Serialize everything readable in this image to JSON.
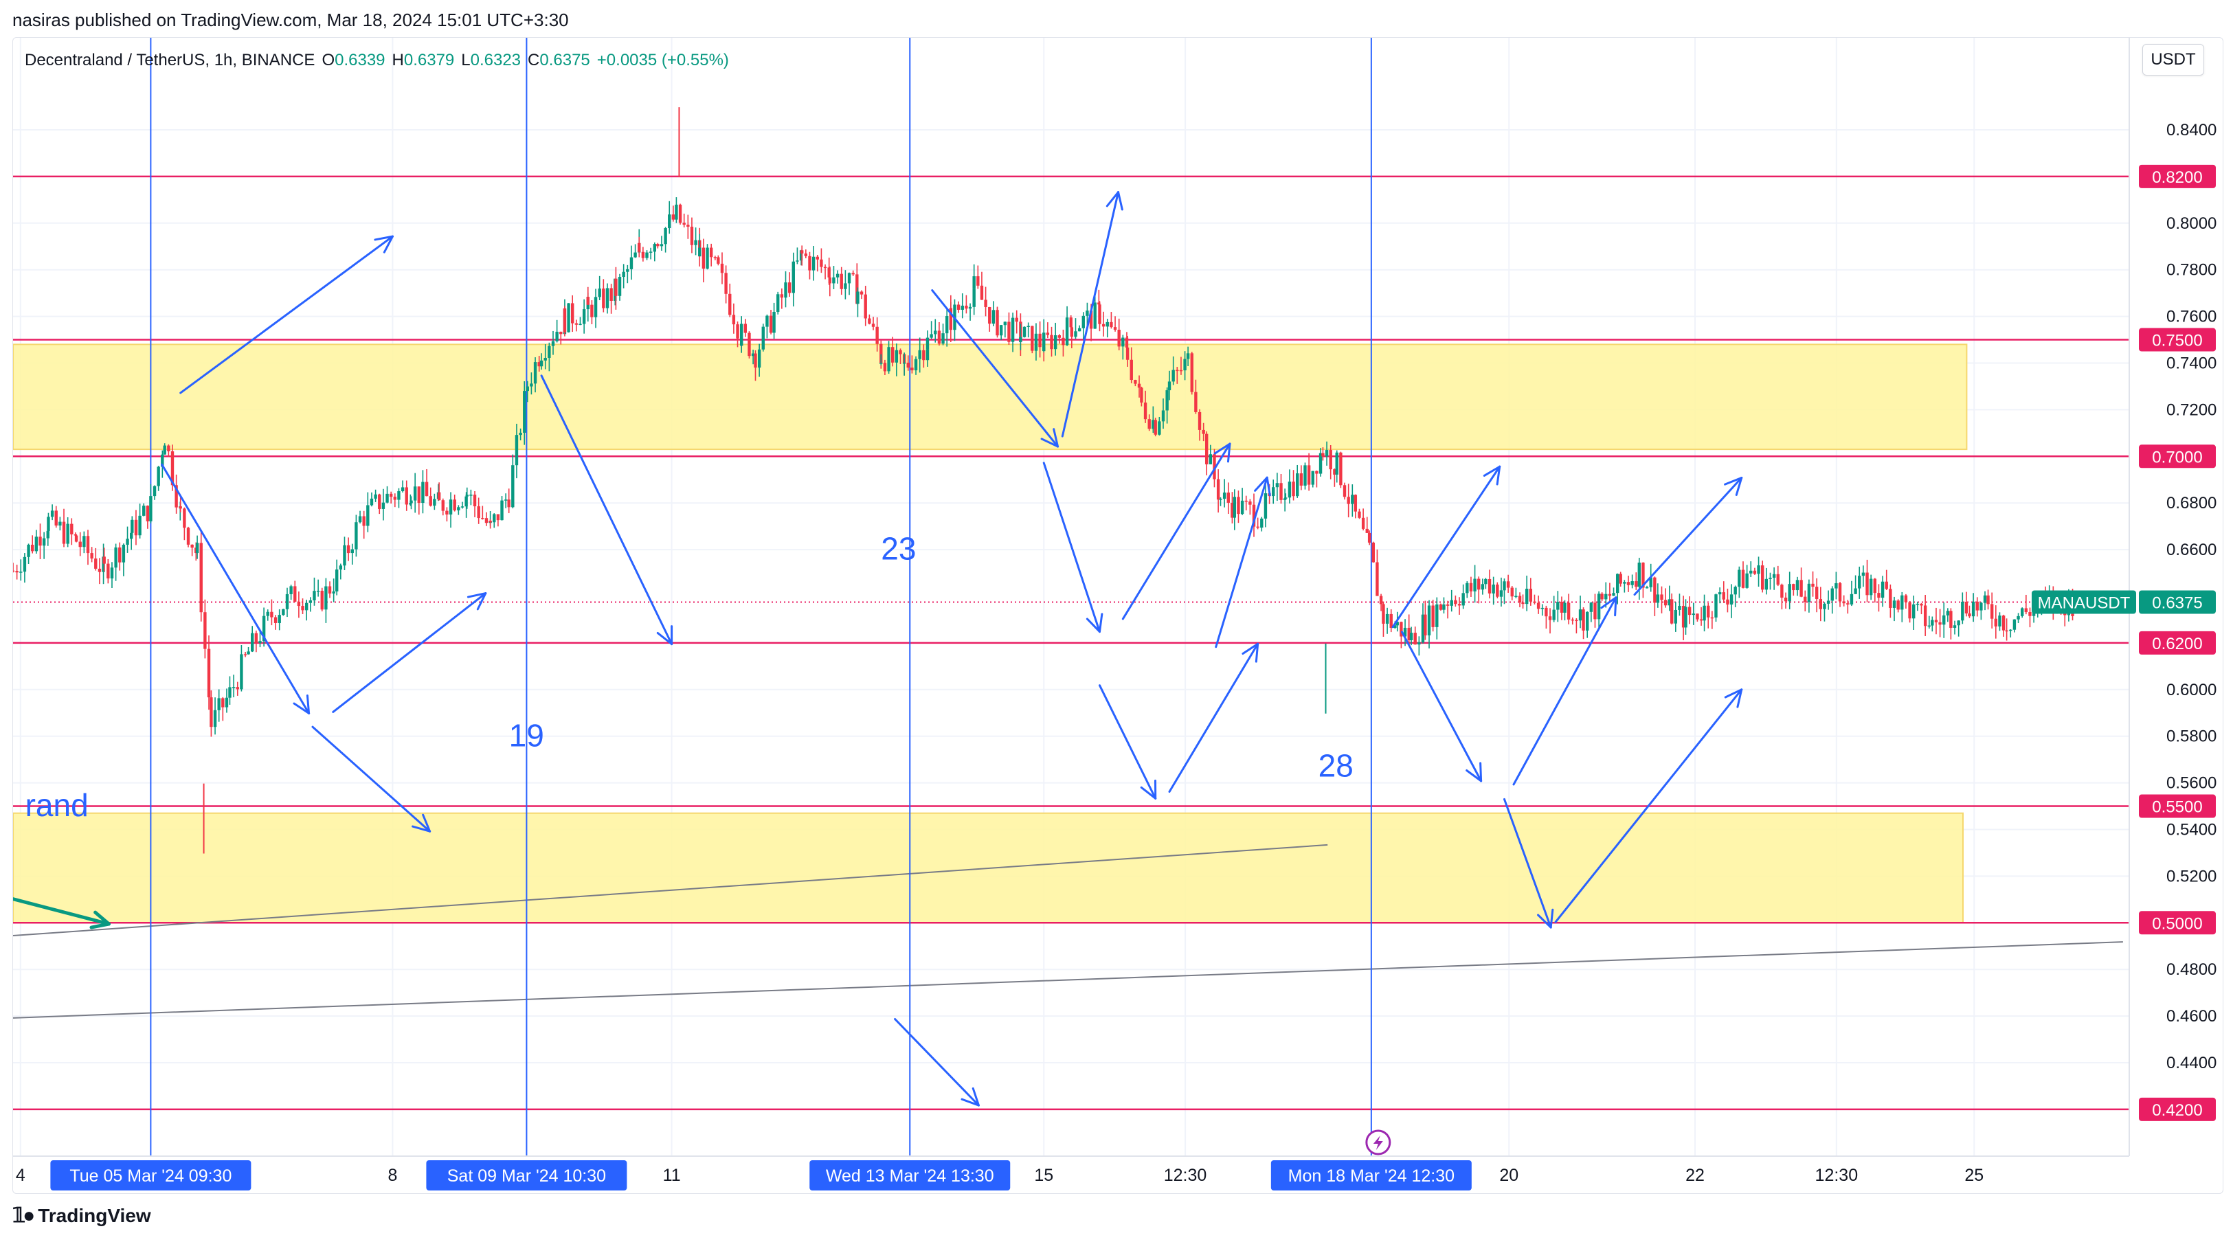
{
  "publish_line": "nasiras published on TradingView.com, Mar 18, 2024 15:01 UTC+3:30",
  "legend": {
    "symbol": "Decentraland / TetherUS, 1h, BINANCE",
    "open_label": "O",
    "open": "0.6339",
    "high_label": "H",
    "high": "0.6379",
    "low_label": "L",
    "low": "0.6323",
    "close_label": "C",
    "close": "0.6375",
    "change": "+0.0035 (+0.55%)"
  },
  "currency_button": "USDT",
  "footer": {
    "brand": "TradingView",
    "logo_icon": "tradingview-logo-icon"
  },
  "colors": {
    "bull": "#089981",
    "bear": "#f23645",
    "level_line": "#e91e63",
    "zone_fill": "#fff59d",
    "arrow": "#2962ff",
    "current_price": "#089981",
    "time_marker": "#2962ff",
    "trendline": "#787b86",
    "green_arrow": "#089981"
  },
  "chart_data": {
    "type": "candlestick",
    "symbol": "MANAUSDT",
    "interval": "1h",
    "ylim": [
      0.42,
      0.86
    ],
    "y_ticks": [
      "0.4400",
      "0.4600",
      "0.4800",
      "0.5200",
      "0.5400",
      "0.5600",
      "0.5800",
      "0.6000",
      "0.6600",
      "0.6800",
      "0.7200",
      "0.7400",
      "0.7600",
      "0.7800",
      "0.8000",
      "0.8400"
    ],
    "x_ticks": [
      {
        "label": "4",
        "day": 4.0
      },
      {
        "label": "8",
        "day": 8.0
      },
      {
        "label": "11",
        "day": 11.0
      },
      {
        "label": "15",
        "day": 15.0
      },
      {
        "label": "12:30",
        "day": 16.52
      },
      {
        "label": "20",
        "day": 20.0
      },
      {
        "label": "22",
        "day": 22.0
      },
      {
        "label": "12:30",
        "day": 23.52
      },
      {
        "label": "25",
        "day": 25.0
      }
    ],
    "x_range_days": [
      3.92,
      26.67
    ],
    "horizontal_levels": [
      {
        "price": 0.82,
        "label": "0.8200"
      },
      {
        "price": 0.75,
        "label": "0.7500"
      },
      {
        "price": 0.7,
        "label": "0.7000"
      },
      {
        "price": 0.62,
        "label": "0.6200"
      },
      {
        "price": 0.55,
        "label": "0.5500"
      },
      {
        "price": 0.5,
        "label": "0.5000"
      },
      {
        "price": 0.42,
        "label": "0.4200"
      }
    ],
    "zones": [
      {
        "from_day": 3.92,
        "to_day": 24.92,
        "low": 0.703,
        "high": 0.748
      },
      {
        "from_day": 3.92,
        "to_day": 24.88,
        "low": 0.5,
        "high": 0.547
      }
    ],
    "time_markers": [
      {
        "day": 5.4,
        "label": "Tue 05 Mar '24   09:30"
      },
      {
        "day": 9.44,
        "label": "Sat 09 Mar '24   10:30"
      },
      {
        "day": 13.56,
        "label": "Wed 13 Mar '24   13:30"
      },
      {
        "day": 18.52,
        "label": "Mon 18 Mar '24   12:30"
      }
    ],
    "current_price": {
      "symbol": "MANAUSDT",
      "value": "0.6375",
      "price": 0.6375
    },
    "annotations": [
      {
        "text": "19",
        "day": 9.25,
        "price": 0.5757
      },
      {
        "text": "23",
        "day": 13.25,
        "price": 0.6557
      },
      {
        "text": "28",
        "day": 17.95,
        "price": 0.5627
      },
      {
        "text": "rand",
        "day": 4.05,
        "price": 0.5457
      }
    ],
    "arrows": [
      [
        5.72,
        0.7272,
        8.0,
        0.7943
      ],
      [
        5.52,
        0.6965,
        7.1,
        0.5898
      ],
      [
        7.36,
        0.5904,
        9.0,
        0.6413
      ],
      [
        7.14,
        0.584,
        8.4,
        0.5392
      ],
      [
        9.6,
        0.7346,
        11.0,
        0.6195
      ],
      [
        13.8,
        0.7712,
        15.15,
        0.7042
      ],
      [
        15.2,
        0.7086,
        15.8,
        0.8133
      ],
      [
        15.0,
        0.6972,
        15.6,
        0.6248
      ],
      [
        15.85,
        0.6303,
        17.0,
        0.7054
      ],
      [
        15.6,
        0.6018,
        16.2,
        0.5533
      ],
      [
        16.35,
        0.5562,
        17.3,
        0.6196
      ],
      [
        16.85,
        0.6183,
        17.4,
        0.6909
      ],
      [
        18.75,
        0.6268,
        19.9,
        0.6956
      ],
      [
        18.85,
        0.6247,
        19.7,
        0.5608
      ],
      [
        19.95,
        0.553,
        20.45,
        0.498
      ],
      [
        20.5,
        0.5003,
        22.5,
        0.6
      ],
      [
        20.05,
        0.5593,
        21.15,
        0.6395
      ],
      [
        21.35,
        0.6407,
        22.5,
        0.6908
      ],
      [
        13.4,
        0.4587,
        14.3,
        0.4217
      ]
    ],
    "trendlines": [
      [
        3.92,
        0.4945,
        18.05,
        0.5334
      ],
      [
        3.92,
        0.4592,
        26.6,
        0.4918
      ]
    ],
    "green_arrow": [
      3.92,
      0.5102,
      4.95,
      0.4995
    ],
    "highlights": {
      "high": {
        "day": 11.08,
        "price": 0.8197
      },
      "wick_low": {
        "day": 5.97,
        "price": 0.5297
      },
      "bottom": {
        "day": 18.03,
        "price": 0.5897
      }
    },
    "price_path": [
      [
        3.92,
        0.651
      ],
      [
        4.3,
        0.672
      ],
      [
        4.6,
        0.664
      ],
      [
        4.9,
        0.651
      ],
      [
        5.2,
        0.668
      ],
      [
        5.4,
        0.679
      ],
      [
        5.55,
        0.709
      ],
      [
        5.72,
        0.675
      ],
      [
        5.9,
        0.658
      ],
      [
        6.05,
        0.585
      ],
      [
        6.25,
        0.598
      ],
      [
        6.45,
        0.616
      ],
      [
        6.7,
        0.632
      ],
      [
        6.95,
        0.641
      ],
      [
        7.2,
        0.637
      ],
      [
        7.4,
        0.648
      ],
      [
        7.65,
        0.673
      ],
      [
        7.9,
        0.682
      ],
      [
        8.2,
        0.686
      ],
      [
        8.5,
        0.679
      ],
      [
        8.8,
        0.684
      ],
      [
        9.05,
        0.669
      ],
      [
        9.25,
        0.684
      ],
      [
        9.45,
        0.731
      ],
      [
        9.6,
        0.746
      ],
      [
        9.85,
        0.759
      ],
      [
        10.1,
        0.763
      ],
      [
        10.4,
        0.771
      ],
      [
        10.65,
        0.788
      ],
      [
        10.85,
        0.794
      ],
      [
        11.05,
        0.803
      ],
      [
        11.3,
        0.787
      ],
      [
        11.5,
        0.779
      ],
      [
        11.75,
        0.752
      ],
      [
        11.9,
        0.744
      ],
      [
        12.1,
        0.761
      ],
      [
        12.4,
        0.786
      ],
      [
        12.7,
        0.779
      ],
      [
        13.0,
        0.771
      ],
      [
        13.25,
        0.743
      ],
      [
        13.5,
        0.738
      ],
      [
        13.75,
        0.749
      ],
      [
        14.0,
        0.759
      ],
      [
        14.25,
        0.772
      ],
      [
        14.5,
        0.757
      ],
      [
        14.75,
        0.752
      ],
      [
        15.0,
        0.748
      ],
      [
        15.3,
        0.756
      ],
      [
        15.6,
        0.761
      ],
      [
        15.9,
        0.743
      ],
      [
        16.05,
        0.722
      ],
      [
        16.2,
        0.714
      ],
      [
        16.35,
        0.731
      ],
      [
        16.55,
        0.741
      ],
      [
        16.75,
        0.701
      ],
      [
        16.9,
        0.682
      ],
      [
        17.05,
        0.679
      ],
      [
        17.3,
        0.675
      ],
      [
        17.6,
        0.687
      ],
      [
        17.85,
        0.692
      ],
      [
        18.0,
        0.703
      ],
      [
        18.15,
        0.696
      ],
      [
        18.35,
        0.674
      ],
      [
        18.5,
        0.659
      ],
      [
        18.65,
        0.631
      ],
      [
        18.8,
        0.627
      ],
      [
        18.95,
        0.622
      ],
      [
        19.1,
        0.629
      ],
      [
        19.3,
        0.638
      ],
      [
        19.55,
        0.642
      ],
      [
        19.75,
        0.646
      ],
      [
        19.95,
        0.643
      ],
      [
        20.15,
        0.638
      ],
      [
        20.4,
        0.634
      ],
      [
        20.6,
        0.636
      ],
      [
        20.8,
        0.631
      ],
      [
        21.0,
        0.637
      ],
      [
        21.2,
        0.645
      ],
      [
        21.4,
        0.651
      ],
      [
        21.6,
        0.641
      ],
      [
        21.75,
        0.632
      ],
      [
        21.9,
        0.631
      ],
      [
        22.1,
        0.634
      ],
      [
        22.35,
        0.641
      ],
      [
        22.6,
        0.651
      ],
      [
        22.85,
        0.646
      ],
      [
        23.1,
        0.641
      ],
      [
        23.35,
        0.639
      ],
      [
        23.6,
        0.641
      ],
      [
        23.85,
        0.645
      ],
      [
        24.1,
        0.641
      ],
      [
        24.35,
        0.633
      ],
      [
        24.55,
        0.628
      ],
      [
        24.75,
        0.632
      ],
      [
        24.95,
        0.637
      ],
      [
        25.15,
        0.634
      ],
      [
        25.35,
        0.629
      ],
      [
        25.6,
        0.634
      ],
      [
        25.85,
        0.637
      ],
      [
        26.1,
        0.6375
      ]
    ]
  }
}
